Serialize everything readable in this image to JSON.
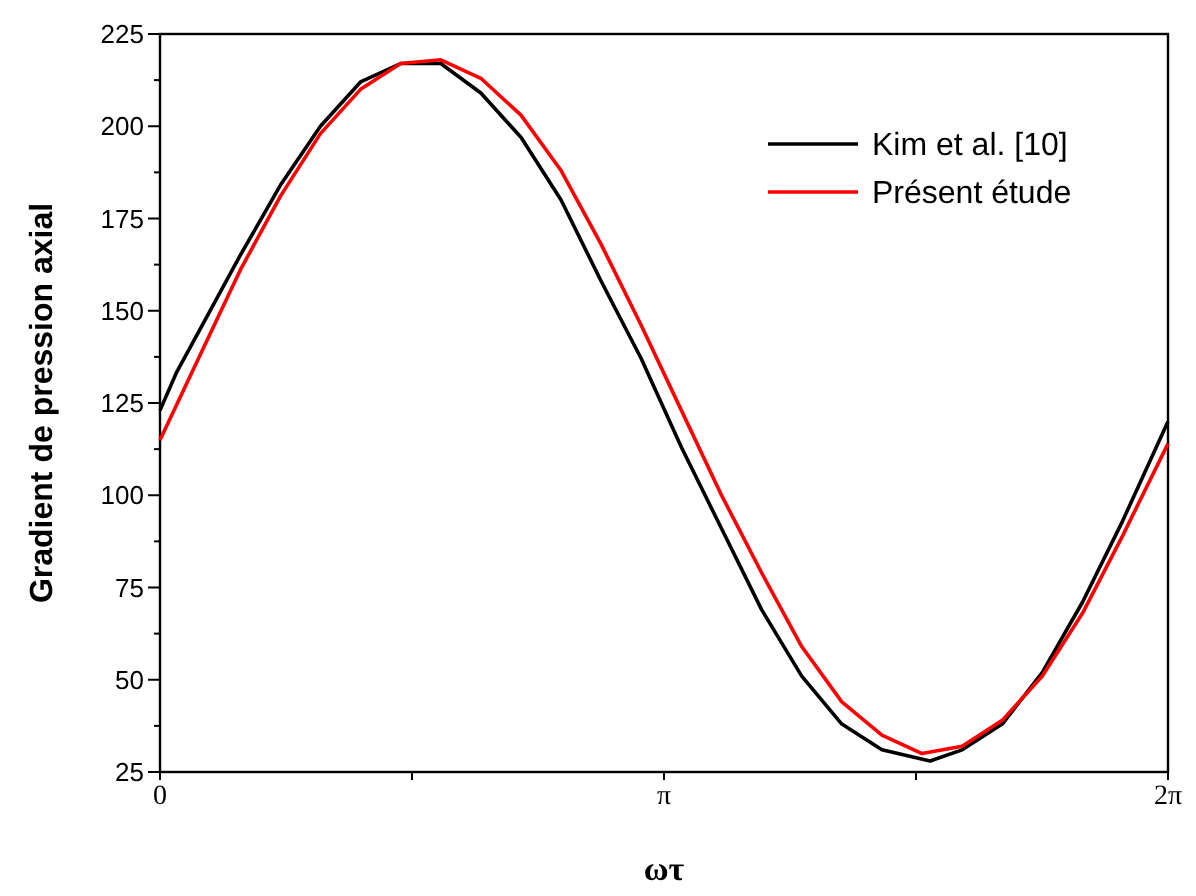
{
  "chart_data": {
    "type": "line",
    "xlabel": "ωτ",
    "ylabel": "Gradient de pression axial",
    "xlim": [
      0,
      6.2832
    ],
    "ylim": [
      25,
      225
    ],
    "xticks": [
      {
        "value": 0,
        "label": "0"
      },
      {
        "value": 1.5708,
        "label": null
      },
      {
        "value": 3.1416,
        "label": "π"
      },
      {
        "value": 4.7124,
        "label": null
      },
      {
        "value": 6.2832,
        "label": "2π"
      }
    ],
    "yticks": [
      25,
      {
        "value": 37.5,
        "label": null
      },
      50,
      {
        "value": 62.5,
        "label": null
      },
      75,
      {
        "value": 87.5,
        "label": null
      },
      100,
      {
        "value": 112.5,
        "label": null
      },
      125,
      {
        "value": 137.5,
        "label": null
      },
      150,
      {
        "value": 162.5,
        "label": null
      },
      175,
      {
        "value": 187.5,
        "label": null
      },
      200,
      {
        "value": 212.5,
        "label": null
      },
      225
    ],
    "legend": "top right",
    "grid": false,
    "marker": "none",
    "line_style": "solid",
    "series": [
      {
        "name": "Kim et al. [10]",
        "color": "#000000",
        "x": [
          0,
          0.1,
          0.25,
          0.5,
          0.75,
          1,
          1.25,
          1.5,
          1.75,
          2,
          2.25,
          2.5,
          2.75,
          3,
          3.25,
          3.5,
          3.75,
          4,
          4.25,
          4.5,
          4.8,
          5,
          5.25,
          5.5,
          5.75,
          6,
          6.2832
        ],
        "values": [
          123,
          133,
          145,
          165,
          184,
          200,
          212,
          217,
          217,
          209,
          197,
          180,
          158,
          137,
          113,
          91,
          69,
          51,
          38,
          31,
          28,
          31,
          38,
          52,
          71,
          93,
          120
        ]
      },
      {
        "name": "Présent étude",
        "color": "#ff0000",
        "x": [
          0,
          0.25,
          0.5,
          0.75,
          1,
          1.25,
          1.5,
          1.75,
          2,
          2.25,
          2.5,
          2.75,
          3,
          3.25,
          3.5,
          3.75,
          4,
          4.25,
          4.5,
          4.75,
          5,
          5.25,
          5.5,
          5.75,
          6,
          6.2832
        ],
        "values": [
          115,
          138,
          161,
          181,
          198,
          210,
          217,
          218,
          213,
          203,
          188,
          168,
          146,
          123,
          100,
          79,
          59,
          44,
          35,
          30,
          32,
          39,
          51,
          68,
          89,
          114
        ]
      }
    ]
  }
}
